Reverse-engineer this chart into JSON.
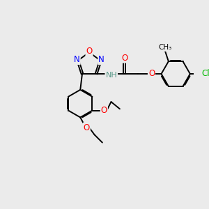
{
  "bg_color": "#ebebeb",
  "bond_color": "#000000",
  "bond_width": 1.4,
  "atom_colors": {
    "O": "#ff0000",
    "N": "#0000ff",
    "Cl": "#00bb00",
    "C": "#000000",
    "H": "#5a9a8a"
  },
  "font_size": 8.5
}
